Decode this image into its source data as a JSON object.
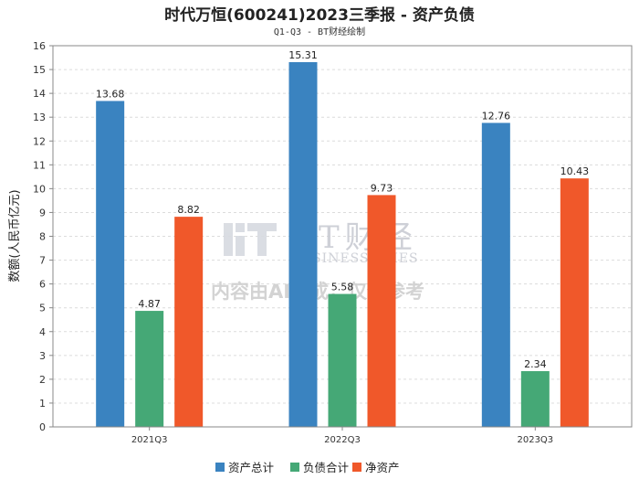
{
  "watermark": {
    "brand": "BT财经",
    "sub": "BUSINESSTIMES",
    "note": "内容由AI生成，仅供参考"
  },
  "chart_data": {
    "type": "bar",
    "title": "时代万恒(600241)2023三季报 - 资产负债",
    "subtitle": "Q1-Q3 - BT财经绘制",
    "xlabel": "",
    "ylabel": "数额(人民币亿元)",
    "ylim": [
      0,
      16
    ],
    "yticks": [
      0,
      1,
      2,
      3,
      4,
      5,
      6,
      7,
      8,
      9,
      10,
      11,
      12,
      13,
      14,
      15,
      16
    ],
    "grid": true,
    "legend_position": "bottom",
    "categories": [
      "2021Q3",
      "2022Q3",
      "2023Q3"
    ],
    "series": [
      {
        "name": "资产总计",
        "color": "#3a83c0",
        "values": [
          13.68,
          15.31,
          12.76
        ],
        "labels": [
          "13.68",
          "15.31",
          "12.76"
        ]
      },
      {
        "name": "负债合计",
        "color": "#45a876",
        "values": [
          4.87,
          5.58,
          2.34
        ],
        "labels": [
          "4.87",
          "5.58",
          "2.34"
        ]
      },
      {
        "name": "净资产",
        "color": "#f0582a",
        "values": [
          8.82,
          9.73,
          10.43
        ],
        "labels": [
          "8.82",
          "9.73",
          "10.43"
        ]
      }
    ]
  }
}
